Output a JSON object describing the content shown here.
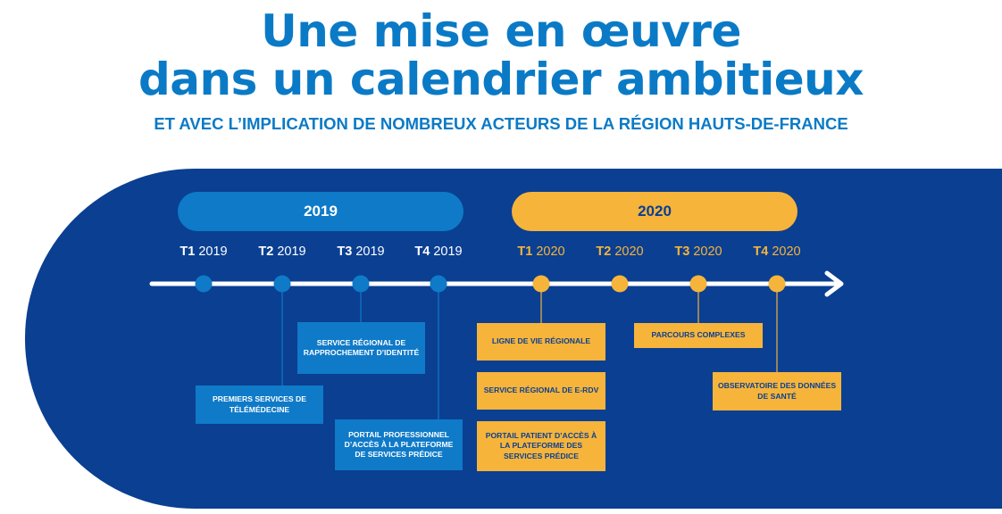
{
  "title": {
    "line1": "Une mise en œuvre",
    "line2": "dans un calendrier ambitieux"
  },
  "subtitle": "ET AVEC L’IMPLICATION DE NOMBREUX ACTEURS DE LA RÉGION HAUTS-DE-FRANCE",
  "years": [
    {
      "label": "2019"
    },
    {
      "label": "2020"
    }
  ],
  "quarters": [
    {
      "q": "T1",
      "year": "2019"
    },
    {
      "q": "T2",
      "year": "2019"
    },
    {
      "q": "T3",
      "year": "2019"
    },
    {
      "q": "T4",
      "year": "2019"
    },
    {
      "q": "T1",
      "year": "2020"
    },
    {
      "q": "T2",
      "year": "2020"
    },
    {
      "q": "T3",
      "year": "2020"
    },
    {
      "q": "T4",
      "year": "2020"
    }
  ],
  "milestones": [
    {
      "text": "Premiers services de télémédecine",
      "quarter": "T2 2019"
    },
    {
      "text": "Service régional de rapprochement d’identité",
      "quarter": "T3 2019"
    },
    {
      "text": "Portail professionnel d’accès à la plateforme de services Prédice",
      "quarter": "T4 2019"
    },
    {
      "text": "Ligne de vie régionale",
      "quarter": "T1 2020"
    },
    {
      "text": "Service régional de E-RDV",
      "quarter": "T1 2020"
    },
    {
      "text": "Portail patient d’accès à la plateforme des services Prédice",
      "quarter": "T1 2020"
    },
    {
      "text": "Parcours complexes",
      "quarter": "T3 2020"
    },
    {
      "text": "Observatoire des données de santé",
      "quarter": "T4 2020"
    }
  ],
  "colors": {
    "title": "#0a7ac6",
    "band": "#0a3f92",
    "blue_accent": "#0f7ac8",
    "orange_accent": "#f6b43b",
    "axis": "#ffffff"
  }
}
